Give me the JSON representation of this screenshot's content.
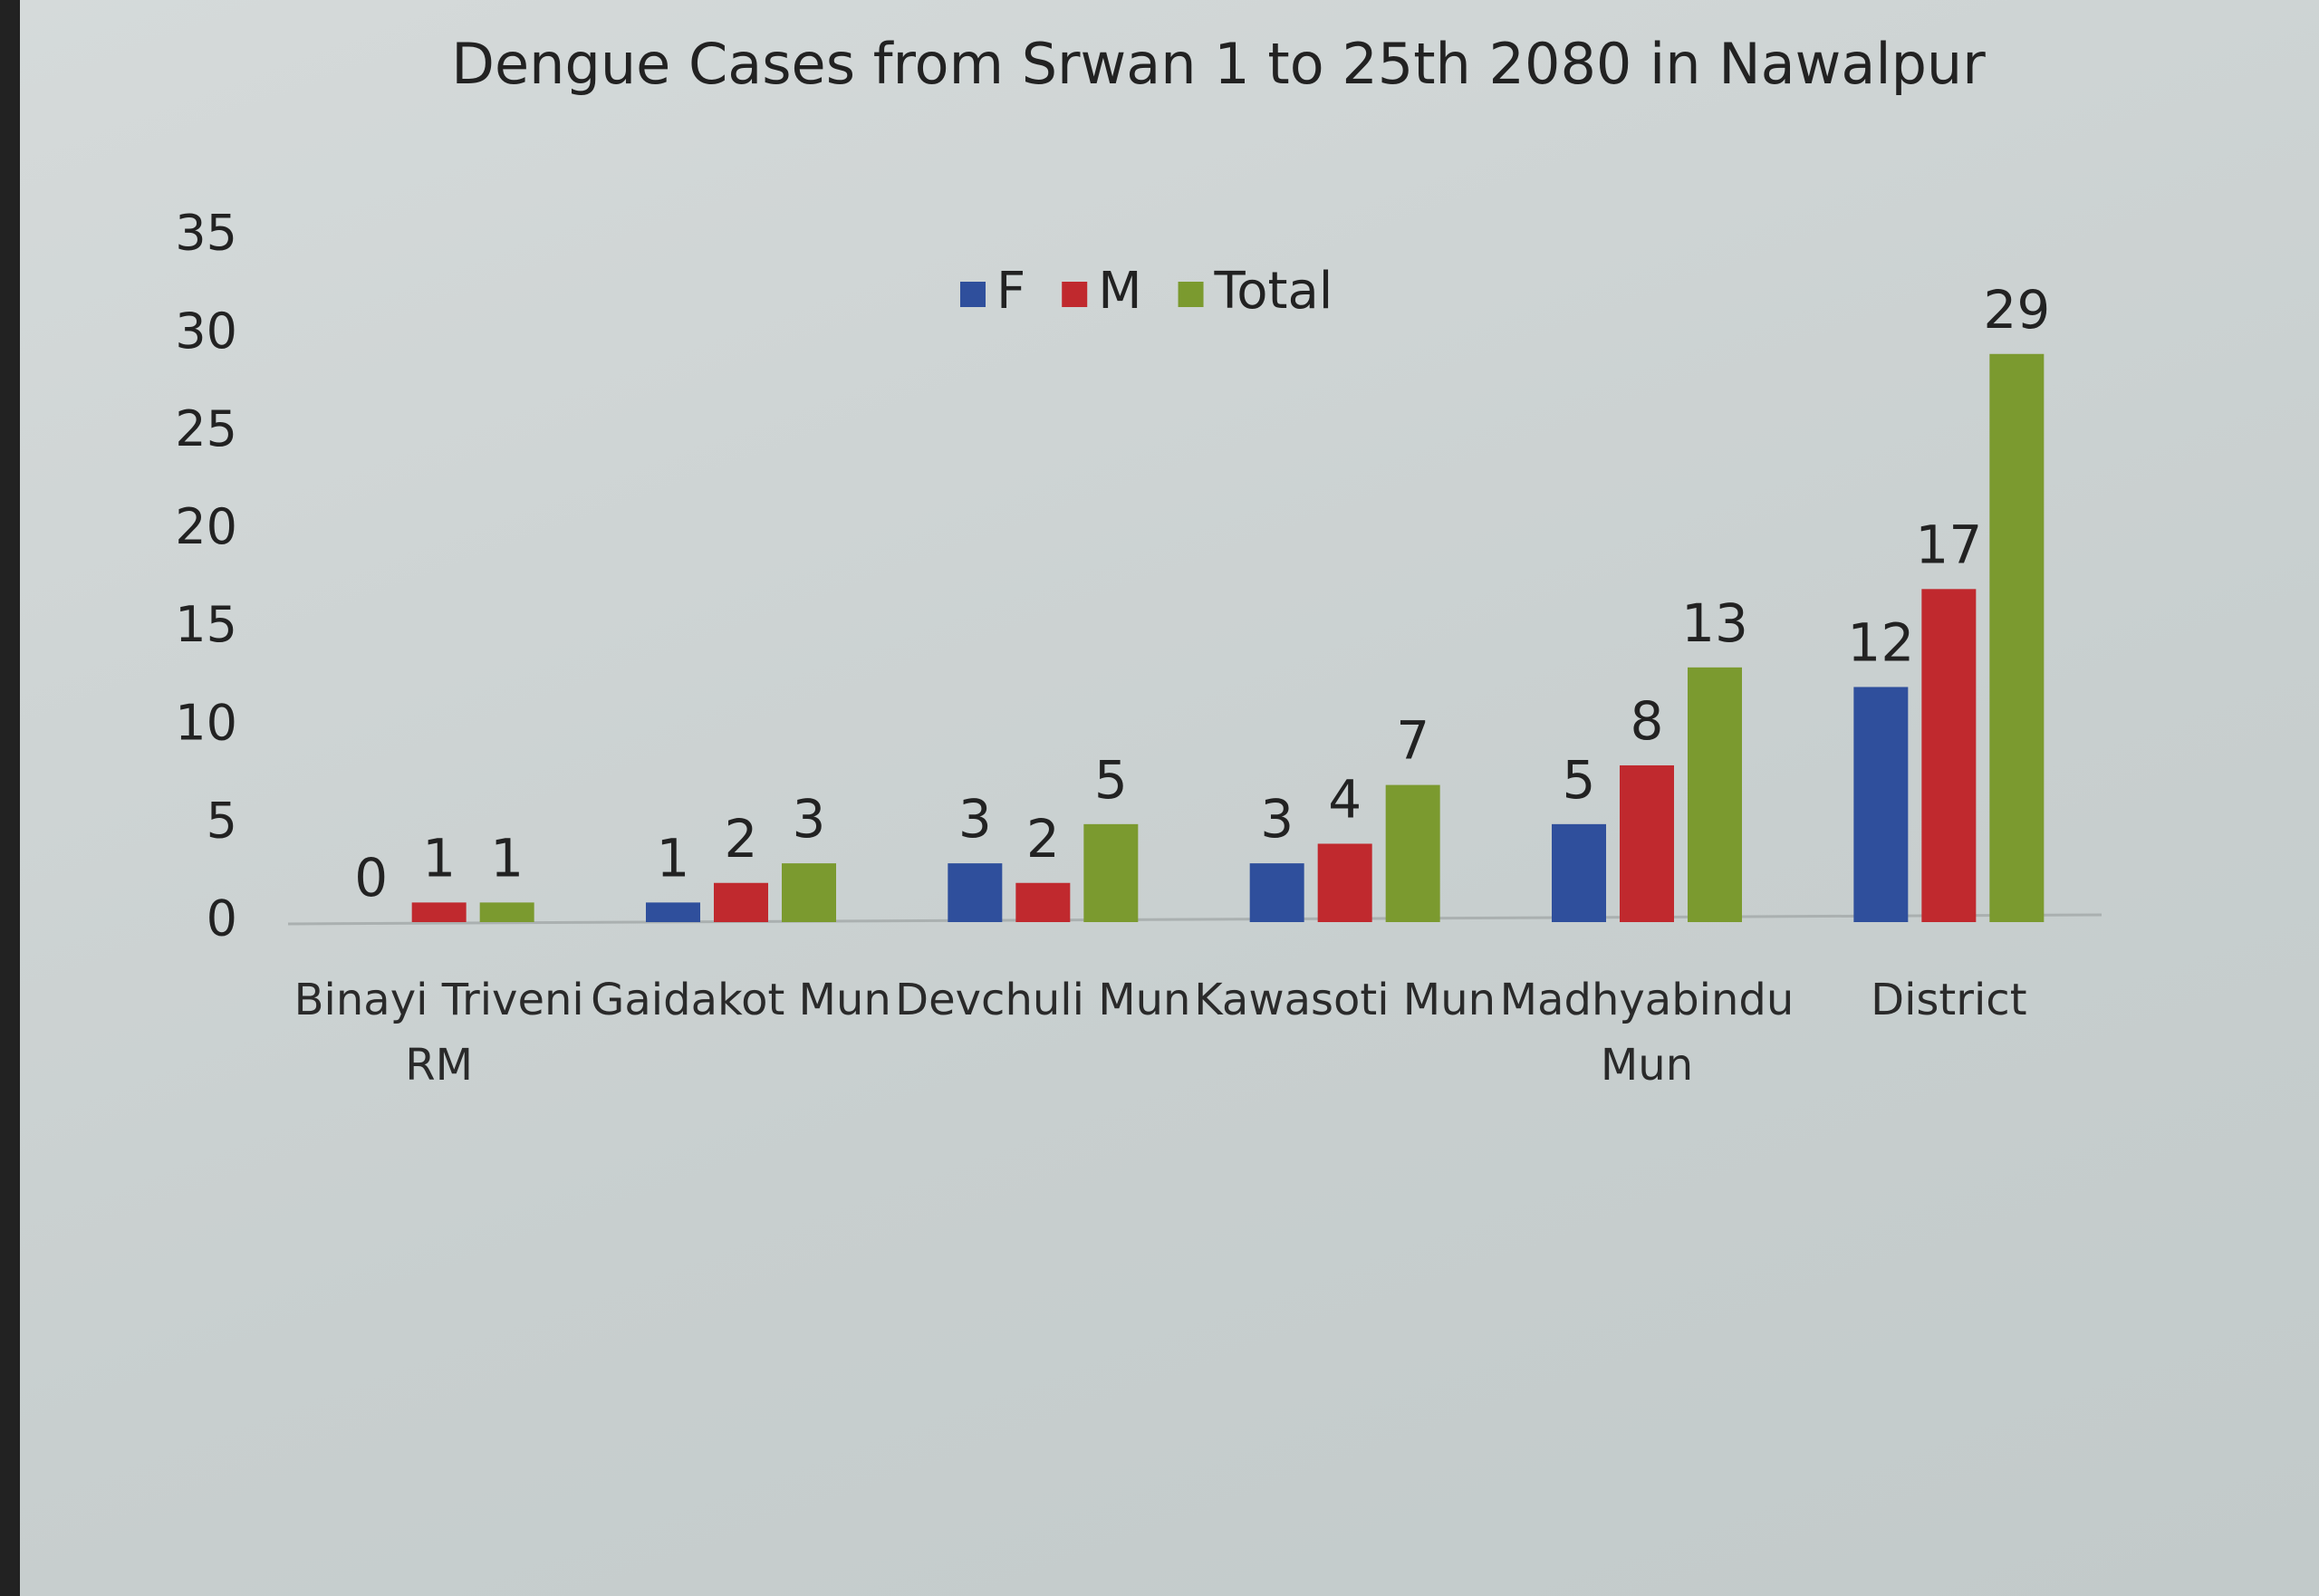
{
  "chart_data": {
    "type": "bar",
    "title": "Dengue Cases from Srwan 1 to 25th 2080 in Nawalpur",
    "categories": [
      "Binayi Triveni RM",
      "Gaidakot Mun",
      "Devchuli Mun",
      "Kawasoti Mun",
      "Madhyabindu Mun",
      "District"
    ],
    "series": [
      {
        "name": "F",
        "color": "#2f4f9c",
        "values": [
          0,
          1,
          3,
          3,
          5,
          12
        ]
      },
      {
        "name": "M",
        "color": "#c0292e",
        "values": [
          1,
          2,
          2,
          4,
          8,
          17
        ]
      },
      {
        "name": "Total",
        "color": "#7b9a2f",
        "values": [
          1,
          3,
          5,
          7,
          13,
          29
        ]
      }
    ],
    "ylim": [
      0,
      35
    ],
    "yticks": [
      0,
      5,
      10,
      15,
      20,
      25,
      30,
      35
    ],
    "grid": false,
    "legend": "top"
  }
}
